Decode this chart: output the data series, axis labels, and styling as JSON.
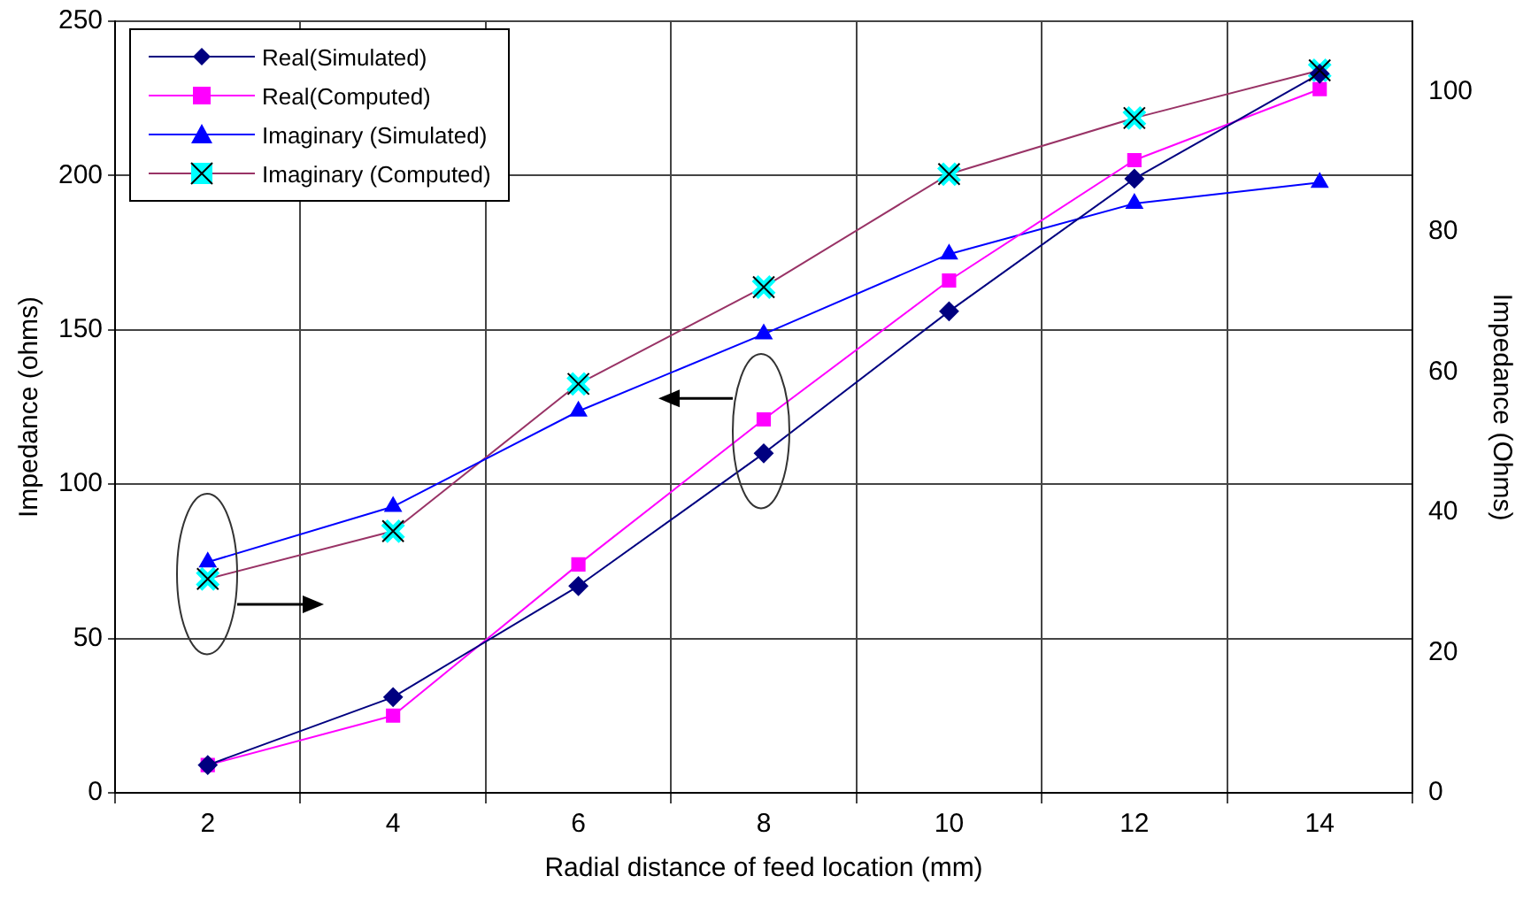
{
  "chart_data": {
    "type": "line",
    "xlabel": "Radial distance of feed location (mm)",
    "ylabel": "Impedance (ohms)",
    "y2label": "Impedance (Ohms)",
    "categories": [
      "2",
      "4",
      "6",
      "8",
      "10",
      "12",
      "14"
    ],
    "series": [
      {
        "name": "Real(Simulated)",
        "color": "#000080",
        "marker": "diamond",
        "values": [
          9,
          31,
          67,
          110,
          156,
          199,
          233
        ]
      },
      {
        "name": "Real(Computed)",
        "color": "#ff00ff",
        "marker": "square",
        "values": [
          9,
          25,
          74,
          121,
          166,
          205,
          228
        ]
      },
      {
        "name": "Imaginary (Simulated)",
        "color": "#0000ff",
        "marker": "triangle",
        "axis": "y2",
        "values": [
          32.9,
          40.8,
          54.4,
          65.4,
          76.8,
          84,
          87
        ]
      },
      {
        "name": "Imaginary (Computed)",
        "color": "#993366",
        "colors": [
          "#00ffff",
          "#00ffff",
          "#00ffff",
          "#00ffff",
          "#00ffff",
          "#00ffff",
          "#00ffff"
        ],
        "marker": "cross",
        "axis": "y2",
        "values": [
          30.5,
          37.3,
          58.3,
          72.1,
          88.2,
          96.2,
          103
        ]
      }
    ],
    "ylim": [
      0,
      250
    ],
    "yticks": [
      0,
      50,
      100,
      150,
      200,
      250
    ],
    "y2lim": [
      0,
      110
    ],
    "y2ticks": [
      0,
      20,
      40,
      60,
      80,
      100
    ],
    "grid": true,
    "legend": "top left"
  }
}
